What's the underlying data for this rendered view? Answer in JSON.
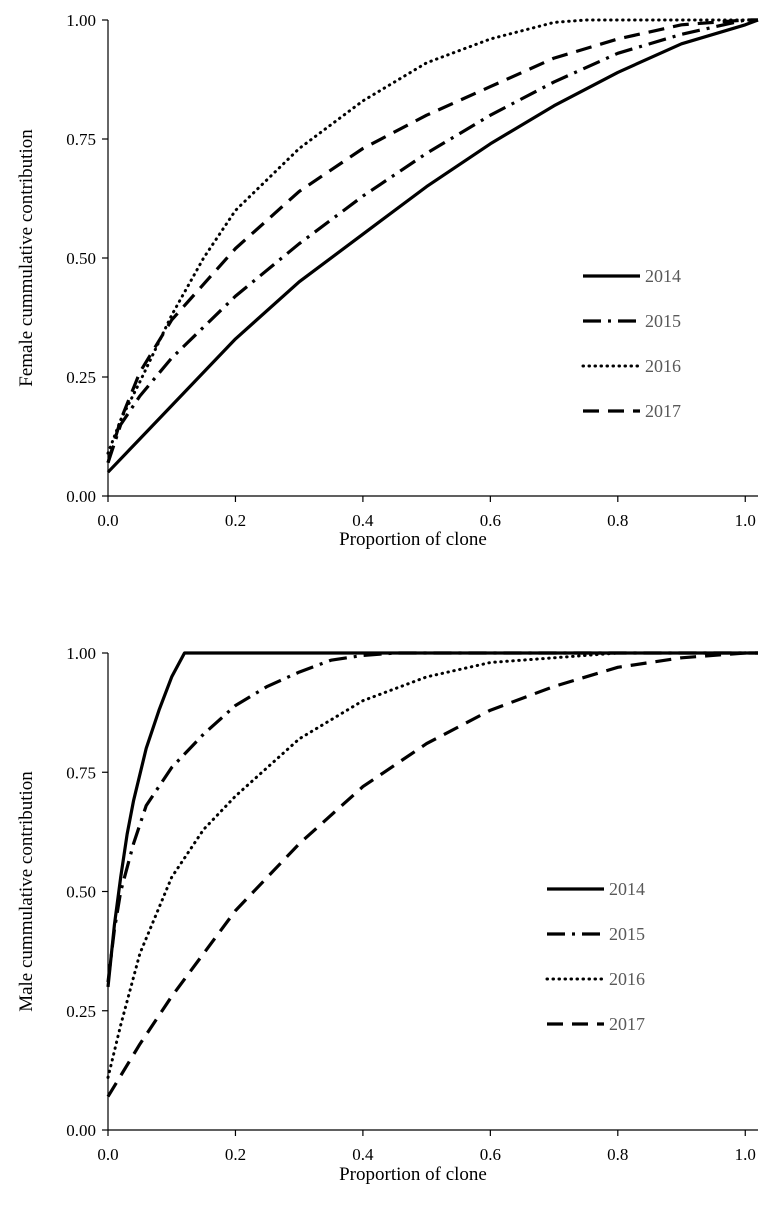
{
  "chart_data": [
    {
      "type": "line",
      "xlabel": "Proportion of clone",
      "ylabel": "Female cummulative contribution",
      "xlim": [
        0,
        1.02
      ],
      "ylim": [
        0,
        1
      ],
      "x_ticks": [
        "0.0",
        "0.2",
        "0.4",
        "0.6",
        "0.8",
        "1.0"
      ],
      "y_ticks": [
        "0.00",
        "0.25",
        "0.50",
        "0.75",
        "1.00"
      ],
      "x_tick_values": [
        0,
        0.2,
        0.4,
        0.6,
        0.8,
        1.0
      ],
      "y_tick_values": [
        0,
        0.25,
        0.5,
        0.75,
        1.0
      ],
      "grid": false,
      "legend_position": "center-right",
      "series": [
        {
          "name": "2014",
          "style": "solid",
          "x": [
            0,
            0.05,
            0.1,
            0.2,
            0.3,
            0.4,
            0.5,
            0.6,
            0.7,
            0.8,
            0.9,
            1.0,
            1.02
          ],
          "y": [
            0.05,
            0.12,
            0.19,
            0.33,
            0.45,
            0.55,
            0.65,
            0.74,
            0.82,
            0.89,
            0.95,
            0.99,
            1.0
          ]
        },
        {
          "name": "2015",
          "style": "dashdot",
          "x": [
            0,
            0.02,
            0.05,
            0.1,
            0.2,
            0.3,
            0.4,
            0.5,
            0.6,
            0.7,
            0.8,
            0.9,
            1.0,
            1.02
          ],
          "y": [
            0.07,
            0.15,
            0.21,
            0.29,
            0.42,
            0.53,
            0.63,
            0.72,
            0.8,
            0.87,
            0.93,
            0.97,
            1.0,
            1.0
          ]
        },
        {
          "name": "2016",
          "style": "dotted",
          "x": [
            0,
            0.02,
            0.05,
            0.1,
            0.15,
            0.2,
            0.3,
            0.4,
            0.5,
            0.6,
            0.7,
            0.75,
            0.8,
            0.9,
            1.0,
            1.02
          ],
          "y": [
            0.09,
            0.16,
            0.24,
            0.38,
            0.5,
            0.6,
            0.73,
            0.83,
            0.91,
            0.96,
            0.995,
            1.0,
            1.0,
            1.0,
            1.0,
            1.0
          ]
        },
        {
          "name": "2017",
          "style": "dashed",
          "x": [
            0,
            0.02,
            0.05,
            0.1,
            0.2,
            0.3,
            0.4,
            0.5,
            0.6,
            0.7,
            0.8,
            0.9,
            1.0,
            1.02
          ],
          "y": [
            0.07,
            0.16,
            0.26,
            0.37,
            0.52,
            0.64,
            0.73,
            0.8,
            0.86,
            0.92,
            0.96,
            0.99,
            1.0,
            1.0
          ]
        }
      ]
    },
    {
      "type": "line",
      "xlabel": "Proportion of clone",
      "ylabel": "Male cummulative contribution",
      "xlim": [
        0,
        1.02
      ],
      "ylim": [
        0,
        1
      ],
      "x_ticks": [
        "0.0",
        "0.2",
        "0.4",
        "0.6",
        "0.8",
        "1.0"
      ],
      "y_ticks": [
        "0.00",
        "0.25",
        "0.50",
        "0.75",
        "1.00"
      ],
      "x_tick_values": [
        0,
        0.2,
        0.4,
        0.6,
        0.8,
        1.0
      ],
      "y_tick_values": [
        0,
        0.25,
        0.5,
        0.75,
        1.0
      ],
      "grid": false,
      "legend_position": "center-right",
      "series": [
        {
          "name": "2014",
          "style": "solid",
          "x": [
            0,
            0.01,
            0.02,
            0.03,
            0.04,
            0.06,
            0.08,
            0.1,
            0.12,
            0.2,
            0.4,
            0.6,
            0.8,
            1.0,
            1.02
          ],
          "y": [
            0.3,
            0.43,
            0.53,
            0.62,
            0.69,
            0.8,
            0.88,
            0.95,
            1.0,
            1.0,
            1.0,
            1.0,
            1.0,
            1.0,
            1.0
          ]
        },
        {
          "name": "2015",
          "style": "dashdot",
          "x": [
            0,
            0.01,
            0.02,
            0.04,
            0.06,
            0.1,
            0.15,
            0.2,
            0.25,
            0.3,
            0.35,
            0.4,
            0.45,
            0.6,
            0.8,
            1.0,
            1.02
          ],
          "y": [
            0.31,
            0.42,
            0.5,
            0.6,
            0.68,
            0.76,
            0.83,
            0.89,
            0.93,
            0.96,
            0.985,
            0.995,
            1.0,
            1.0,
            1.0,
            1.0,
            1.0
          ]
        },
        {
          "name": "2016",
          "style": "dotted",
          "x": [
            0,
            0.02,
            0.05,
            0.1,
            0.15,
            0.2,
            0.3,
            0.4,
            0.5,
            0.6,
            0.7,
            0.8,
            0.9,
            1.0,
            1.02
          ],
          "y": [
            0.11,
            0.22,
            0.37,
            0.53,
            0.63,
            0.7,
            0.82,
            0.9,
            0.95,
            0.98,
            0.99,
            1.0,
            1.0,
            1.0,
            1.0
          ]
        },
        {
          "name": "2017",
          "style": "dashed",
          "x": [
            0,
            0.05,
            0.1,
            0.15,
            0.2,
            0.3,
            0.4,
            0.5,
            0.6,
            0.7,
            0.8,
            0.9,
            1.0,
            1.02
          ],
          "y": [
            0.07,
            0.18,
            0.28,
            0.37,
            0.46,
            0.6,
            0.72,
            0.81,
            0.88,
            0.93,
            0.97,
            0.99,
            1.0,
            1.0
          ]
        }
      ]
    }
  ]
}
